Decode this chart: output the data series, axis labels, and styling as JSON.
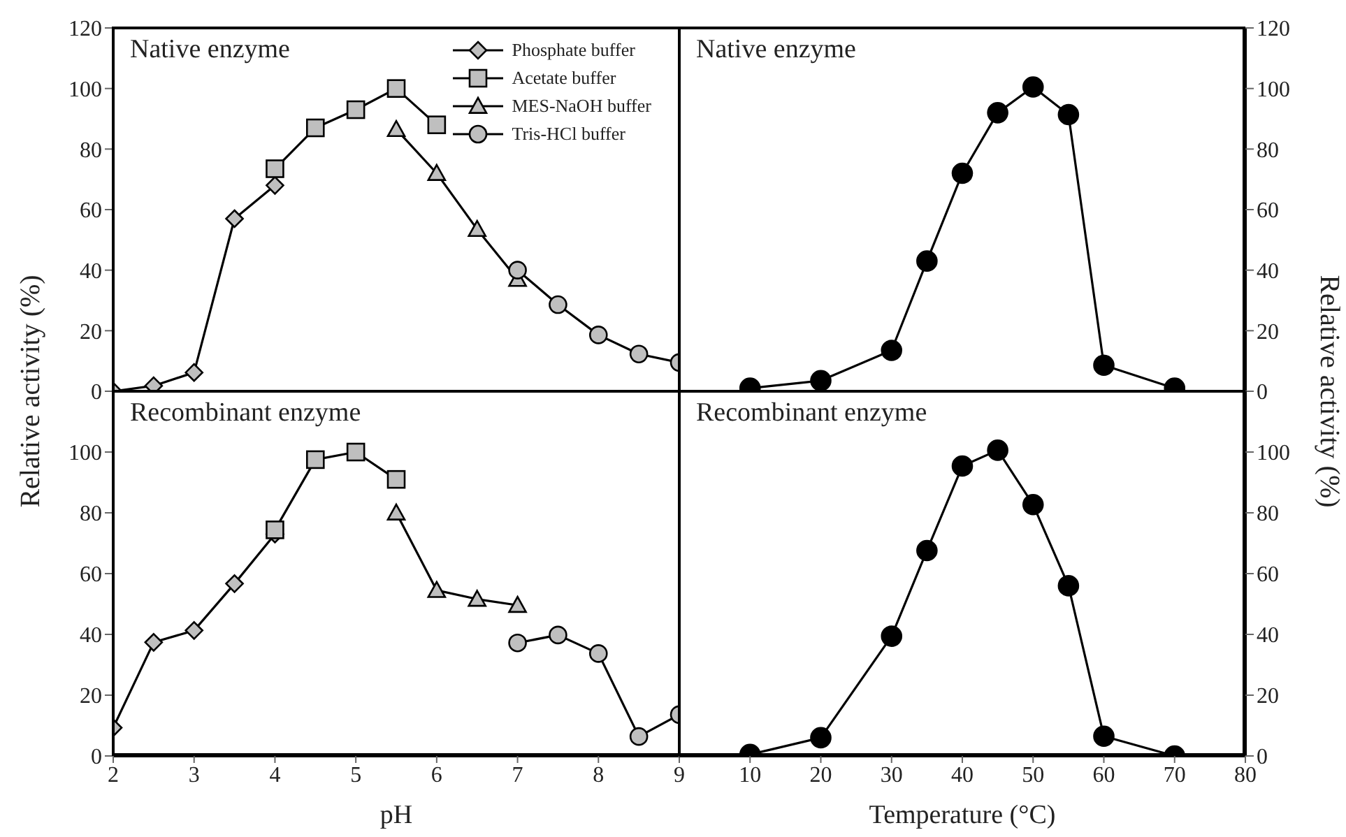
{
  "chart_data": [
    {
      "type": "line",
      "title": "Native enzyme",
      "xlim": [
        2,
        9
      ],
      "xticks": [
        2,
        3,
        4,
        5,
        6,
        7,
        8,
        9
      ],
      "ylim": [
        0,
        120
      ],
      "yticks": [
        0,
        20,
        40,
        60,
        80,
        100,
        120
      ],
      "tick_labels": "y",
      "legend": "top right",
      "series": [
        {
          "name": "Phosphate buffer",
          "color": "#bfbfbf",
          "marker": "diamond",
          "x": [
            2,
            2.5,
            3,
            3.5,
            4
          ],
          "values": [
            0,
            1.8,
            6.2,
            57,
            68
          ]
        },
        {
          "name": "Acetate buffer",
          "color": "#bfbfbf",
          "marker": "square",
          "x": [
            4,
            4.5,
            5,
            5.5,
            6
          ],
          "values": [
            73.5,
            87,
            93,
            100,
            88
          ]
        },
        {
          "name": "MES-NaOH buffer",
          "color": "#bfbfbf",
          "marker": "triangle",
          "x": [
            5.5,
            6,
            6.5,
            7
          ],
          "values": [
            86.5,
            72,
            53.5,
            37
          ]
        },
        {
          "name": "Tris-HCl buffer",
          "color": "#bfbfbf",
          "marker": "circle",
          "x": [
            7,
            7.5,
            8,
            8.5,
            9
          ],
          "values": [
            40,
            28.6,
            18.6,
            12.3,
            9.5
          ]
        }
      ]
    },
    {
      "type": "line",
      "title": "Native enzyme",
      "xlim": [
        0,
        80
      ],
      "xticks": [
        10,
        20,
        30,
        40,
        50,
        60,
        70,
        80
      ],
      "y2lim": [
        0,
        120
      ],
      "y2ticks": [
        0,
        20,
        40,
        60,
        80,
        100,
        120
      ],
      "tick_labels": "y",
      "series": [
        {
          "color": "#000000",
          "marker": "circle",
          "axis": "y2",
          "x": [
            10,
            20,
            30,
            35,
            40,
            45,
            50,
            55,
            60,
            70
          ],
          "values": [
            1,
            3.5,
            13.5,
            43,
            72,
            92,
            100.5,
            91.4,
            8.6,
            1
          ]
        }
      ]
    },
    {
      "type": "line",
      "title": "Recombinant enzyme",
      "xlabel": "pH",
      "ylabel": "Relative activity (%)",
      "xlim": [
        2,
        9
      ],
      "xticks": [
        2,
        3,
        4,
        5,
        6,
        7,
        8,
        9
      ],
      "ylim": [
        0,
        120
      ],
      "yticks": [
        0,
        20,
        40,
        60,
        80,
        100
      ],
      "series": [
        {
          "color": "#bfbfbf",
          "marker": "diamond",
          "x": [
            2,
            2.5,
            3,
            3.5,
            4
          ],
          "values": [
            9.3,
            37.4,
            41.3,
            56.7,
            73
          ]
        },
        {
          "color": "#bfbfbf",
          "marker": "square",
          "x": [
            4,
            4.5,
            5,
            5.5
          ],
          "values": [
            74.4,
            97.5,
            100,
            91
          ]
        },
        {
          "color": "#bfbfbf",
          "marker": "triangle",
          "x": [
            5.5,
            6,
            6.5,
            7
          ],
          "values": [
            80,
            54.5,
            51.6,
            49.6
          ]
        },
        {
          "color": "#bfbfbf",
          "marker": "circle",
          "x": [
            7,
            7.5,
            8,
            8.5,
            9
          ],
          "values": [
            37.2,
            39.8,
            33.7,
            6.4,
            13.6
          ]
        }
      ]
    },
    {
      "type": "line",
      "title": "Recombinant enzyme",
      "xlabel": "Temperature (°C)",
      "y2label": "Relative activity (%)",
      "xlim": [
        0,
        80
      ],
      "xticks": [
        10,
        20,
        30,
        40,
        50,
        60,
        70,
        80
      ],
      "y2lim": [
        0,
        120
      ],
      "y2ticks": [
        0,
        20,
        40,
        60,
        80,
        100
      ],
      "series": [
        {
          "color": "#000000",
          "marker": "circle",
          "axis": "y2",
          "x": [
            10,
            20,
            30,
            35,
            40,
            45,
            50,
            55,
            60,
            70
          ],
          "values": [
            0.5,
            6,
            39.4,
            67.6,
            95.4,
            100.6,
            82.7,
            56,
            6.5,
            0
          ]
        }
      ]
    }
  ]
}
